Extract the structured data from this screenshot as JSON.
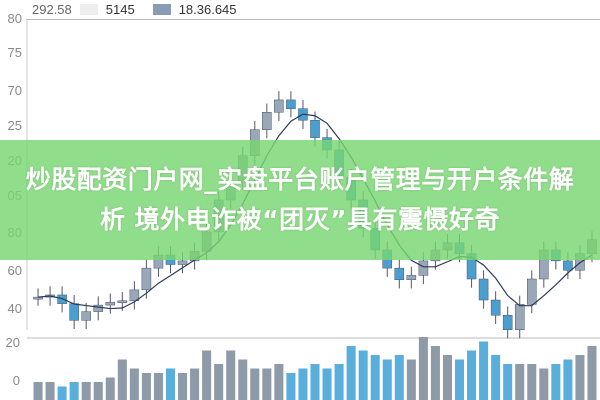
{
  "legend": {
    "value_1": "292.58",
    "value_2": "5145",
    "value_3": "18.36.645",
    "swatch_2_color": "#eeeeee",
    "swatch_3_color": "#8a9bb5"
  },
  "banner": {
    "line_1": "炒股配资门户网_实盘平台账户管理与开户条件解",
    "line_2": "析 境外电诈被“团灭”具有震慑好奇",
    "color": "#78d672"
  },
  "chart_data": {
    "type": "candlestick",
    "price_tick_labels": [
      "80",
      "75",
      "70",
      "25",
      "20",
      "05",
      "80",
      "60",
      "40"
    ],
    "volume_tick_labels": [
      "20",
      "0"
    ],
    "closes": [
      41.5,
      41.8,
      40.6,
      38.3,
      39.5,
      40.4,
      40.8,
      41.0,
      42.5,
      45.5,
      47.3,
      46.0,
      46.5,
      47.8,
      50.5,
      54.9,
      57.5,
      61.0,
      64.6,
      67.0,
      68.7,
      67.5,
      65.9,
      63.5,
      61.8,
      58.0,
      54.9,
      51.0,
      48.0,
      45.5,
      43.9,
      44.5,
      46.5,
      48.0,
      49.0,
      47.5,
      44.0,
      41.1,
      39.0,
      37.0,
      40.5,
      44.0,
      48.0,
      46.5,
      45.2,
      47.5,
      49.4
    ],
    "volumes": [
      4,
      4,
      3,
      4,
      4,
      4,
      5,
      9,
      7,
      6,
      6,
      7,
      6,
      7,
      11,
      8,
      11,
      9,
      7,
      7,
      8,
      6,
      7,
      8,
      7,
      8,
      12,
      11,
      10,
      9,
      10,
      9,
      14,
      12,
      10,
      9,
      11,
      13,
      10,
      8,
      8,
      8,
      7,
      8,
      9,
      10,
      12
    ],
    "colors": {
      "up": "#9aa7b8",
      "down": "#4a9fd0",
      "ma_dark": "#2a3b5a",
      "ma_light": "#9aa0a8"
    }
  }
}
